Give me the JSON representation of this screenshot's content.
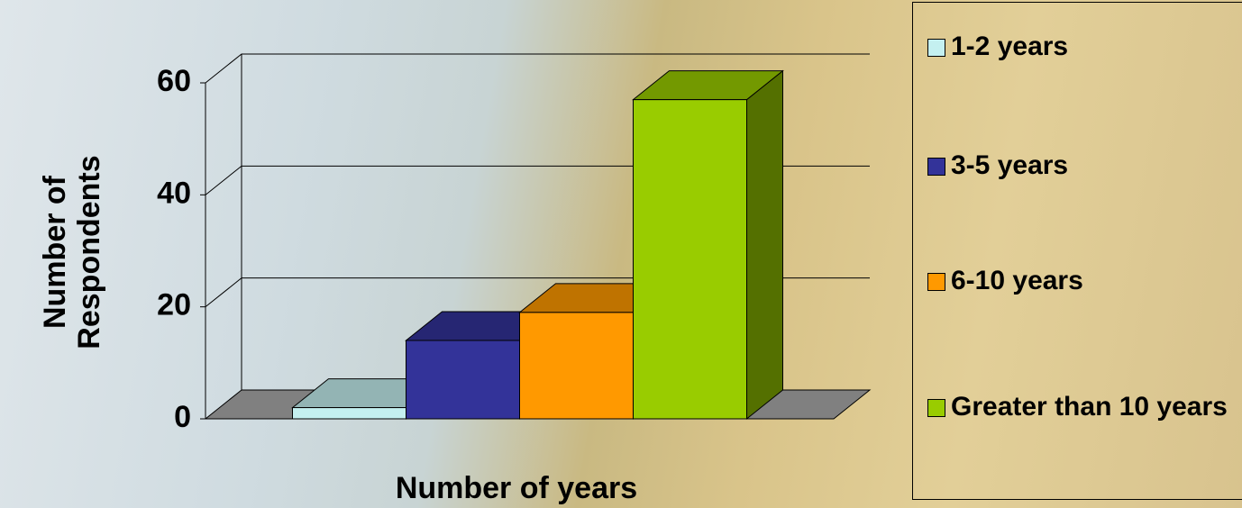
{
  "chart_data": {
    "type": "bar3d",
    "x_label": "Number of years",
    "y_label": "Number of Respondents",
    "categories": [
      null
    ],
    "series": [
      {
        "name": "1-2 years",
        "color": "#c4f0f0",
        "values": [
          2
        ]
      },
      {
        "name": "3-5 years",
        "color": "#333399",
        "values": [
          14
        ]
      },
      {
        "name": "6-10 years",
        "color": "#ff9900",
        "values": [
          19
        ]
      },
      {
        "name": "Greater than 10 years",
        "color": "#99cc00",
        "values": [
          57
        ]
      }
    ],
    "ylim": [
      0,
      60
    ],
    "yticks": [
      0,
      20,
      40,
      60
    ],
    "grid": true,
    "legend": "right"
  }
}
